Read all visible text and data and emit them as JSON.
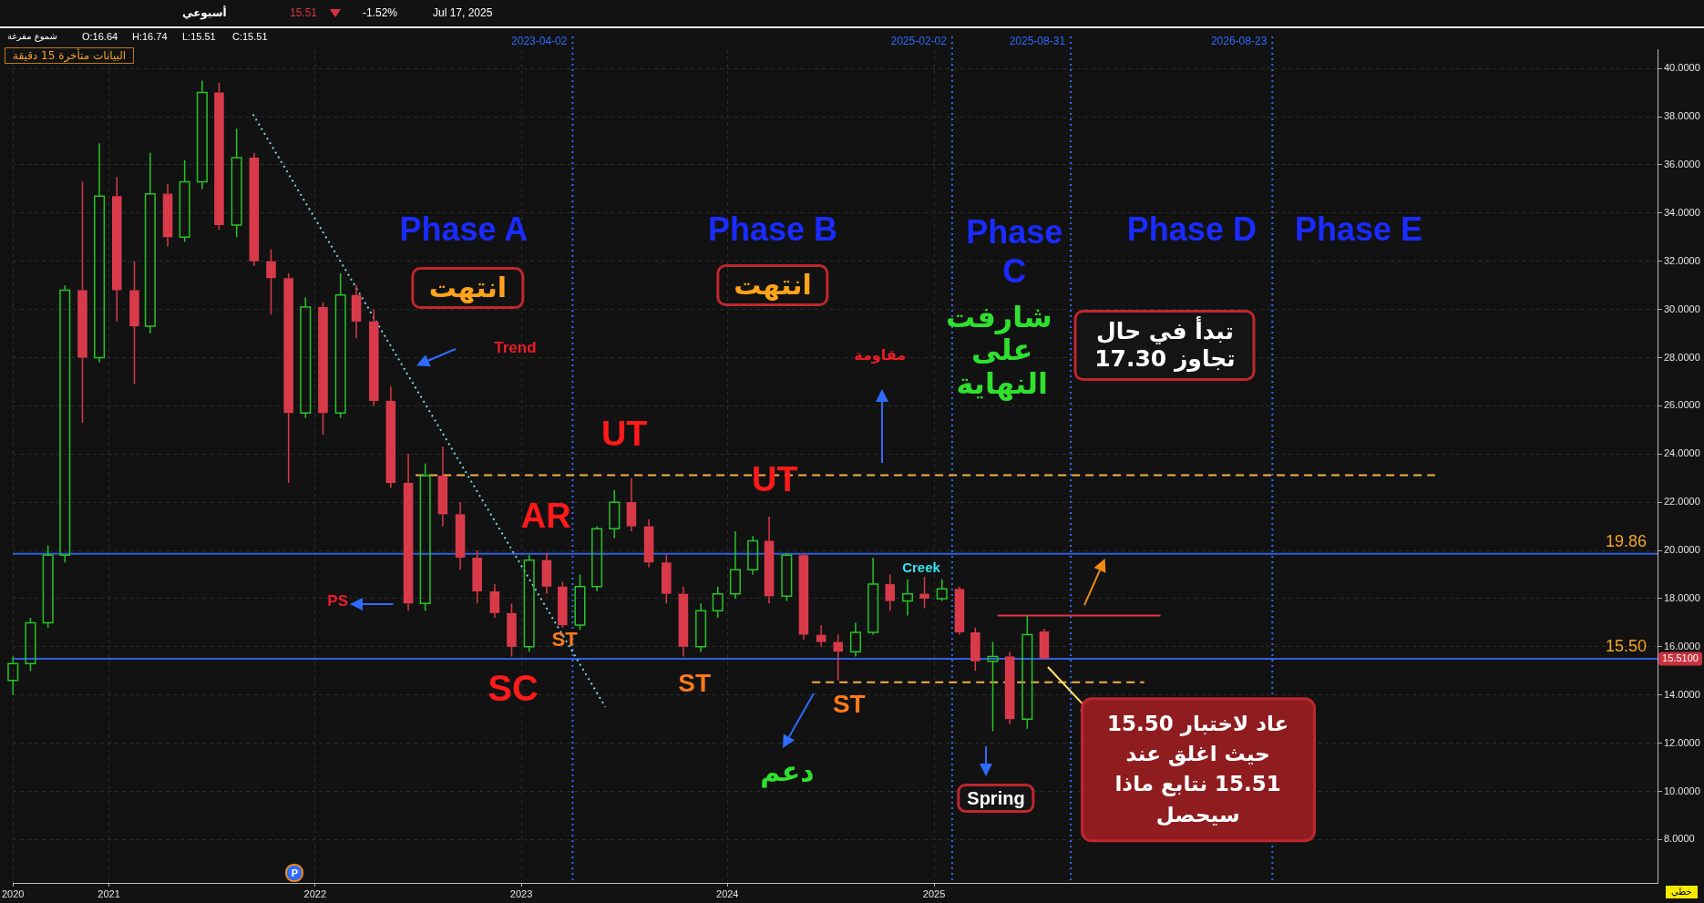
{
  "chart_data": {
    "type": "candlestick",
    "x": [
      "2020-07-15",
      "2020-08-15",
      "2020-09-15",
      "2020-10-15",
      "2020-11-15",
      "2020-12-15",
      "2021-01-15",
      "2021-02-15",
      "2021-03-15",
      "2021-04-15",
      "2021-05-15",
      "2021-06-15",
      "2021-07-15",
      "2021-08-15",
      "2021-09-15",
      "2021-10-15",
      "2021-11-15",
      "2021-12-15",
      "2022-01-15",
      "2022-02-15",
      "2022-03-15",
      "2022-04-15",
      "2022-05-15",
      "2022-06-15",
      "2022-07-15",
      "2022-08-15",
      "2022-09-15",
      "2022-10-15",
      "2022-11-15",
      "2022-12-15",
      "2023-01-15",
      "2023-02-15",
      "2023-03-15",
      "2023-04-15",
      "2023-05-15",
      "2023-06-15",
      "2023-07-15",
      "2023-08-15",
      "2023-09-15",
      "2023-10-15",
      "2023-11-15",
      "2023-12-15",
      "2024-01-15",
      "2024-02-15",
      "2024-03-15",
      "2024-04-15",
      "2024-05-15",
      "2024-06-15",
      "2024-07-15",
      "2024-08-15",
      "2024-09-15",
      "2024-10-15",
      "2024-11-15",
      "2024-12-15",
      "2025-01-15",
      "2025-02-15",
      "2025-03-15",
      "2025-04-15",
      "2025-05-15",
      "2025-06-15",
      "2025-07-15"
    ],
    "ohlc": [
      [
        14.6,
        15.6,
        14.0,
        15.3
      ],
      [
        15.3,
        17.2,
        15.0,
        17.0
      ],
      [
        17.0,
        20.2,
        16.8,
        19.8
      ],
      [
        19.8,
        31.0,
        19.5,
        30.8
      ],
      [
        30.8,
        35.3,
        25.3,
        28.0
      ],
      [
        28.0,
        36.9,
        27.8,
        34.7
      ],
      [
        34.7,
        35.5,
        29.5,
        30.8
      ],
      [
        30.8,
        32.0,
        26.9,
        29.3
      ],
      [
        29.3,
        36.5,
        29.0,
        34.8
      ],
      [
        34.8,
        35.2,
        32.6,
        33.0
      ],
      [
        33.0,
        36.2,
        32.8,
        35.3
      ],
      [
        35.3,
        39.5,
        35.0,
        39.0
      ],
      [
        39.0,
        39.4,
        33.3,
        33.5
      ],
      [
        33.5,
        37.5,
        33.0,
        36.3
      ],
      [
        36.3,
        36.5,
        31.8,
        32.0
      ],
      [
        32.0,
        32.5,
        29.8,
        31.3
      ],
      [
        31.3,
        31.5,
        22.8,
        25.7
      ],
      [
        25.7,
        30.5,
        25.5,
        30.1
      ],
      [
        30.1,
        30.3,
        24.8,
        25.7
      ],
      [
        25.7,
        31.5,
        25.5,
        30.6
      ],
      [
        30.6,
        31.0,
        28.8,
        29.5
      ],
      [
        29.5,
        30.0,
        26.0,
        26.2
      ],
      [
        26.2,
        26.8,
        22.6,
        22.8
      ],
      [
        22.8,
        24.0,
        17.5,
        17.8
      ],
      [
        17.8,
        23.6,
        17.5,
        23.1
      ],
      [
        23.1,
        24.3,
        21.0,
        21.5
      ],
      [
        21.5,
        22.0,
        19.2,
        19.7
      ],
      [
        19.7,
        20.0,
        17.8,
        18.3
      ],
      [
        18.3,
        18.6,
        17.2,
        17.4
      ],
      [
        17.4,
        17.8,
        15.6,
        16.0
      ],
      [
        16.0,
        19.8,
        15.8,
        19.6
      ],
      [
        19.6,
        19.9,
        18.2,
        18.5
      ],
      [
        18.5,
        18.7,
        16.8,
        16.9
      ],
      [
        16.9,
        19.0,
        16.7,
        18.5
      ],
      [
        18.5,
        21.0,
        18.3,
        20.9
      ],
      [
        20.9,
        22.5,
        20.5,
        22.0
      ],
      [
        22.0,
        23.0,
        20.8,
        21.0
      ],
      [
        21.0,
        21.3,
        19.3,
        19.5
      ],
      [
        19.5,
        19.8,
        17.8,
        18.2
      ],
      [
        18.2,
        18.5,
        15.6,
        16.0
      ],
      [
        16.0,
        17.8,
        15.8,
        17.5
      ],
      [
        17.5,
        18.5,
        17.2,
        18.2
      ],
      [
        18.2,
        20.8,
        18.0,
        19.2
      ],
      [
        19.2,
        20.6,
        19.0,
        20.4
      ],
      [
        20.4,
        21.4,
        17.8,
        18.1
      ],
      [
        18.1,
        19.9,
        17.9,
        19.8
      ],
      [
        19.8,
        19.9,
        16.3,
        16.5
      ],
      [
        16.5,
        16.9,
        16.0,
        16.2
      ],
      [
        16.2,
        16.5,
        14.6,
        15.8
      ],
      [
        15.8,
        17.0,
        15.6,
        16.6
      ],
      [
        16.6,
        19.7,
        16.5,
        18.6
      ],
      [
        18.6,
        19.0,
        17.5,
        17.9
      ],
      [
        17.9,
        18.8,
        17.3,
        18.2
      ],
      [
        18.2,
        18.9,
        17.6,
        18.0
      ],
      [
        18.0,
        18.8,
        17.9,
        18.4
      ],
      [
        18.4,
        18.5,
        16.5,
        16.6
      ],
      [
        16.6,
        16.8,
        15.0,
        15.4
      ],
      [
        15.4,
        16.2,
        12.5,
        15.6
      ],
      [
        15.6,
        15.8,
        12.8,
        13.0
      ],
      [
        13.0,
        17.3,
        12.6,
        16.5
      ],
      [
        16.64,
        16.74,
        15.51,
        15.51
      ]
    ],
    "colors": [
      "#27c427",
      "#27c427",
      "#27c427",
      "#27c427",
      "#d93a4a",
      "#27c427",
      "#d93a4a",
      "#d93a4a",
      "#27c427",
      "#d93a4a",
      "#27c427",
      "#27c427",
      "#d93a4a",
      "#27c427",
      "#d93a4a",
      "#d93a4a",
      "#d93a4a",
      "#27c427",
      "#d93a4a",
      "#27c427",
      "#d93a4a",
      "#d93a4a",
      "#d93a4a",
      "#d93a4a",
      "#27c427",
      "#d93a4a",
      "#d93a4a",
      "#d93a4a",
      "#d93a4a",
      "#d93a4a",
      "#27c427",
      "#d93a4a",
      "#d93a4a",
      "#27c427",
      "#27c427",
      "#27c427",
      "#d93a4a",
      "#d93a4a",
      "#d93a4a",
      "#d93a4a",
      "#27c427",
      "#27c427",
      "#27c427",
      "#27c427",
      "#d93a4a",
      "#27c427",
      "#d93a4a",
      "#d93a4a",
      "#d93a4a",
      "#27c427",
      "#27c427",
      "#d93a4a",
      "#27c427",
      "#d93a4a",
      "#27c427",
      "#d93a4a",
      "#d93a4a",
      "#27c427",
      "#d93a4a",
      "#27c427",
      "#d93a4a"
    ],
    "series": [
      {
        "type": "line",
        "x": [
          "2021-09-13",
          "2023-05-30"
        ],
        "values": [
          38.1,
          13.5
        ],
        "color": "#7fd6e0",
        "line_style": "dotted"
      },
      {
        "type": "line",
        "x": [
          "2022-06-28",
          "2027-06-07"
        ],
        "values": [
          23.12,
          23.12
        ],
        "color": "#f5b04a",
        "line_style": "dashed"
      },
      {
        "type": "line",
        "x": [
          "2024-05-30",
          "2026-01-08"
        ],
        "values": [
          14.53,
          14.53
        ],
        "color": "#f5b04a",
        "line_style": "dashed"
      },
      {
        "type": "line",
        "x": [
          "2025-04-23",
          "2026-02-06"
        ],
        "values": [
          17.3,
          17.3
        ],
        "color": "#e8324a",
        "line_style": "solid"
      }
    ],
    "ref_lines": [
      {
        "axis": "x",
        "value": "2023-04-02",
        "label": "2023-04-02",
        "color": "#2f6bff",
        "line_style": "dotted"
      },
      {
        "axis": "x",
        "value": "2025-02-02",
        "label": "2025-02-02",
        "color": "#2f6bff",
        "line_style": "dotted"
      },
      {
        "axis": "x",
        "value": "2025-08-31",
        "label": "2025-08-31",
        "color": "#2f6bff",
        "line_style": "dotted"
      },
      {
        "axis": "x",
        "value": "2026-08-23",
        "label": "2026-08-23",
        "color": "#2f6bff",
        "line_style": "dotted"
      },
      {
        "axis": "y",
        "value": 19.86,
        "label": "19.86",
        "color": "#2f5fe0",
        "line_style": "solid"
      },
      {
        "axis": "y",
        "value": 15.5,
        "label": "15.50",
        "color": "#2f5fe0",
        "line_style": "solid"
      }
    ],
    "xlim": [
      "2020-07-15",
      "2028-07-05"
    ],
    "xticks": [
      {
        "value": "2020-07-15",
        "label": "2020"
      },
      "2021",
      "2022",
      "2023",
      "2024",
      "2025"
    ],
    "ylim": [
      6.2,
      40.8
    ],
    "yticks": [
      {
        "value": 8,
        "label": "8.0000"
      },
      {
        "value": 10,
        "label": "10.0000"
      },
      {
        "value": 12,
        "label": "12.0000"
      },
      {
        "value": 14,
        "label": "14.0000"
      },
      {
        "value": 16,
        "label": "16.0000"
      },
      {
        "value": 18,
        "label": "18.0000"
      },
      {
        "value": 20,
        "label": "20.0000"
      },
      {
        "value": 22,
        "label": "22.0000"
      },
      {
        "value": 24,
        "label": "24.0000"
      },
      {
        "value": 26,
        "label": "26.0000"
      },
      {
        "value": 28,
        "label": "28.0000"
      },
      {
        "value": 30,
        "label": "30.0000"
      },
      {
        "value": 32,
        "label": "32.0000"
      },
      {
        "value": 34,
        "label": "34.0000"
      },
      {
        "value": 36,
        "label": "36.0000"
      },
      {
        "value": 38,
        "label": "38.0000"
      },
      {
        "value": 40,
        "label": "40.0000"
      }
    ],
    "grid": true,
    "legend": false,
    "annotations": [
      "أسبوعي",
      "15.51",
      "-1.52%",
      "Jul 17, 2025",
      "شموع مفرغة",
      "O:16.64",
      "H:16.74",
      "L:15.51",
      "C:15.51",
      "البيانات متأخرة 15 دقيقة",
      "خطي",
      "Phase A",
      "انتهت",
      "Phase B",
      "انتهت",
      "Phase C",
      "شارفت على النهاية",
      "Phase D",
      "Phase E",
      "تبدأ في حال تجاوز 17.30",
      "Trend",
      "مقاومة",
      "UT",
      "UT",
      "AR",
      "Creek",
      "PS",
      "ST",
      "SC",
      "ST",
      "ST",
      "دعم",
      "Spring",
      "عاد لاختبار 15.50 حيث اغلق عند 15.51 نتابع ماذا سيحصل",
      "15.5100",
      "P"
    ]
  }
}
